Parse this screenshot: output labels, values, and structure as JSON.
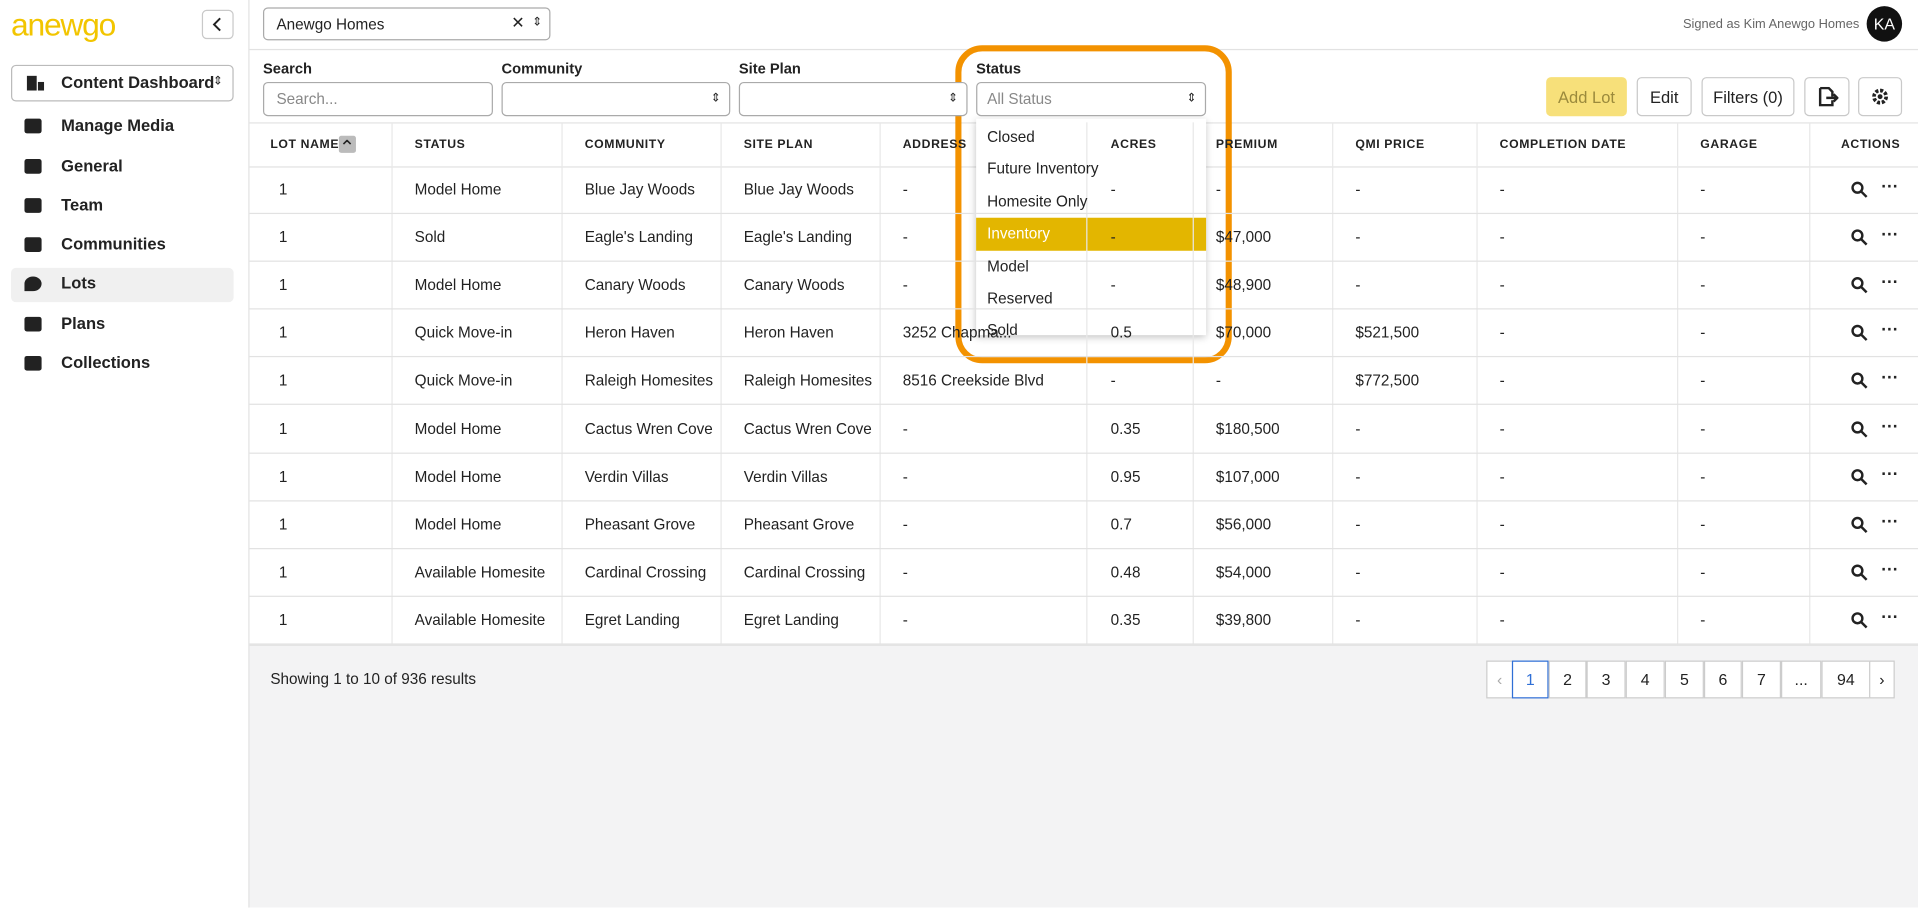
{
  "sidebar": {
    "logo": "anewgo",
    "dashboard_select": "Content Dashboard",
    "nav": [
      "Manage Media",
      "General",
      "Team",
      "Communities",
      "Lots",
      "Plans",
      "Collections"
    ]
  },
  "topbar": {
    "company": "Anewgo Homes",
    "signed_in": "Signed as Kim Anewgo Homes",
    "avatar": "KA"
  },
  "filters": {
    "labels": [
      "Search",
      "Community",
      "Site Plan",
      "Status"
    ],
    "search_placeholder": "Search...",
    "status_placeholder": "All Status"
  },
  "buttons": [
    "Add Lot",
    "Edit",
    "Filters (0)"
  ],
  "status_options": [
    "Closed",
    "Future Inventory",
    "Homesite Only",
    "Inventory",
    "Model",
    "Reserved",
    "Sold"
  ],
  "table": {
    "headers": [
      "LOT NAME",
      "STATUS",
      "COMMUNITY",
      "SITE PLAN",
      "ADDRESS",
      "ACRES",
      "PREMIUM",
      "QMI PRICE",
      "COMPLETION DATE",
      "GARAGE",
      "ACTIONS"
    ],
    "rows": [
      [
        "1",
        "Model Home",
        "Blue Jay Woods",
        "Blue Jay Woods",
        "-",
        "-",
        "-",
        "-",
        "-",
        "-"
      ],
      [
        "1",
        "Sold",
        "Eagle's Landing",
        "Eagle's Landing",
        "-",
        "-",
        "$47,000",
        "-",
        "-",
        "-"
      ],
      [
        "1",
        "Model Home",
        "Canary Woods",
        "Canary Woods",
        "-",
        "-",
        "$48,900",
        "-",
        "-",
        "-"
      ],
      [
        "1",
        "Quick Move-in",
        "Heron Haven",
        "Heron Haven",
        "3252 Chapma...",
        "0.5",
        "$70,000",
        "$521,500",
        "-",
        "-"
      ],
      [
        "1",
        "Quick Move-in",
        "Raleigh Homesites",
        "Raleigh Homesites",
        "8516 Creekside Blvd",
        "-",
        "-",
        "$772,500",
        "-",
        "-"
      ],
      [
        "1",
        "Model Home",
        "Cactus Wren Cove",
        "Cactus Wren Cove",
        "-",
        "0.35",
        "$180,500",
        "-",
        "-",
        "-"
      ],
      [
        "1",
        "Model Home",
        "Verdin Villas",
        "Verdin Villas",
        "-",
        "0.95",
        "$107,000",
        "-",
        "-",
        "-"
      ],
      [
        "1",
        "Model Home",
        "Pheasant Grove",
        "Pheasant Grove",
        "-",
        "0.7",
        "$56,000",
        "-",
        "-",
        "-"
      ],
      [
        "1",
        "Available Homesite",
        "Cardinal Crossing",
        "Cardinal Crossing",
        "-",
        "0.48",
        "$54,000",
        "-",
        "-",
        "-"
      ],
      [
        "1",
        "Available Homesite",
        "Egret Landing",
        "Egret Landing",
        "-",
        "0.35",
        "$39,800",
        "-",
        "-",
        "-"
      ]
    ]
  },
  "footer": {
    "summary": "Showing 1 to 10 of 936 results",
    "pages": [
      "1",
      "2",
      "3",
      "4",
      "5",
      "6",
      "7",
      "...",
      "94"
    ]
  }
}
